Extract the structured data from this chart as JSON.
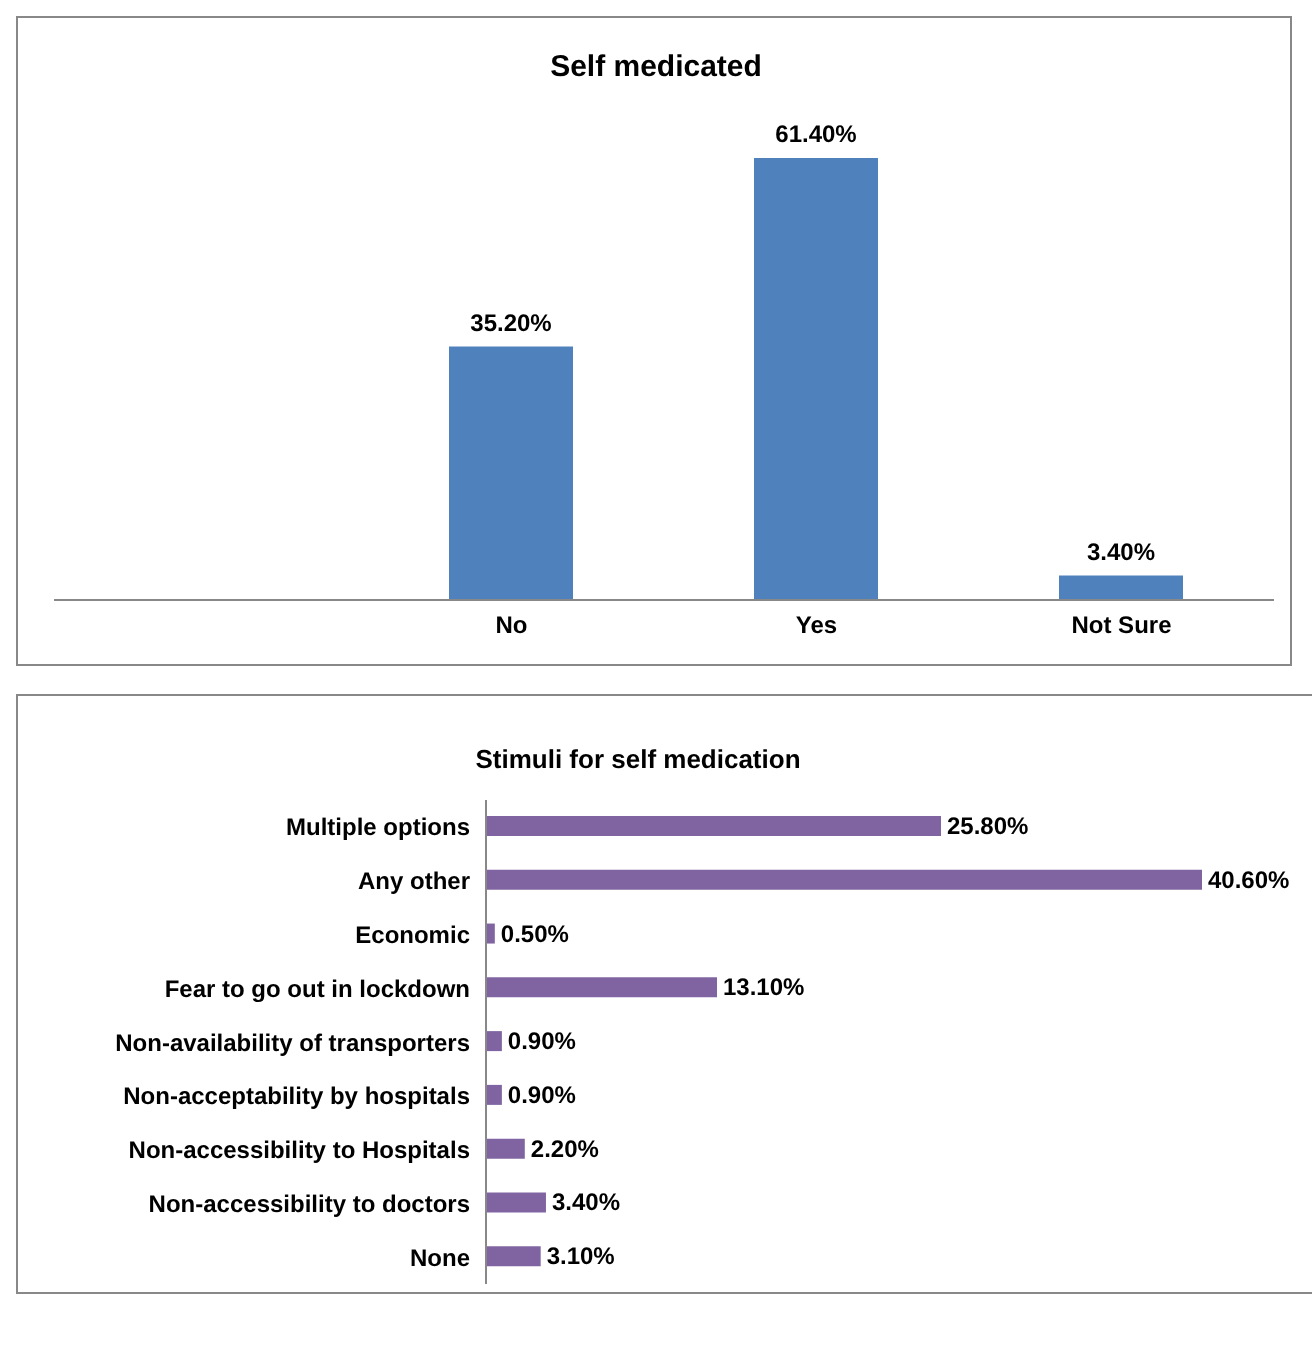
{
  "chart_data": [
    {
      "type": "bar",
      "title": "Self medicated",
      "categories": [
        null,
        "No",
        "Yes",
        "Not Sure"
      ],
      "values": [
        null,
        35.2,
        61.4,
        3.4
      ],
      "value_labels": [
        null,
        "35.20%",
        "61.40%",
        "3.40%"
      ],
      "color": "#4f81bd",
      "grid": false,
      "legend": false
    },
    {
      "type": "bar",
      "orientation": "horizontal",
      "title": "Stimuli for self medication",
      "categories": [
        "Multiple options",
        "Any other",
        "Economic",
        "Fear to go out in lockdown",
        "Non-availability of transporters",
        "Non-acceptability by hospitals",
        "Non-accessibility to Hospitals",
        "Non-accessibility to doctors",
        "None"
      ],
      "values": [
        25.8,
        40.6,
        0.5,
        13.1,
        0.9,
        0.9,
        2.2,
        3.4,
        3.1
      ],
      "value_labels": [
        "25.80%",
        "40.60%",
        "0.50%",
        "13.10%",
        "0.90%",
        "0.90%",
        "2.20%",
        "3.40%",
        "3.10%"
      ],
      "color": "#8064a2",
      "grid": false,
      "legend": false
    }
  ]
}
